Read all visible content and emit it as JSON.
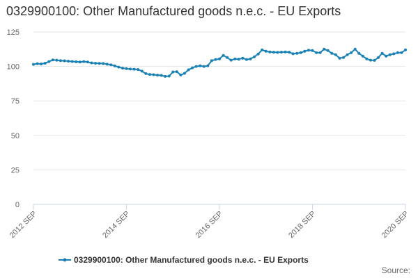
{
  "page": {
    "title": "0329900100: Other Manufactured goods n.e.c. - EU Exports",
    "source_label": "Source:"
  },
  "chart_data": {
    "type": "line",
    "title": "0329900100: Other Manufactured goods n.e.c. - EU Exports",
    "xlabel": "",
    "ylabel": "",
    "ylim": [
      0,
      125
    ],
    "yticks": [
      0,
      25,
      50,
      75,
      100,
      125
    ],
    "xticks": [
      {
        "label": "2012 SEP",
        "index": 0
      },
      {
        "label": "2014 SEP",
        "index": 24
      },
      {
        "label": "2016 SEP",
        "index": 48
      },
      {
        "label": "2018 SEP",
        "index": 72
      },
      {
        "label": "2020 SEP",
        "index": 96
      }
    ],
    "x_start": "2012-09",
    "x_frequency": "monthly",
    "grid": true,
    "legend_position": "bottom",
    "colors": {
      "series": "#1a81b5",
      "grid": "#e6e6e6",
      "axis": "#ccd6eb"
    },
    "series": [
      {
        "name": "0329900100: Other Manufactured goods n.e.c. - EU Exports",
        "values": [
          101.5,
          102,
          101.8,
          102.3,
          103.5,
          104.7,
          104.5,
          104.2,
          104.1,
          103.8,
          103.6,
          103.4,
          103.2,
          103.5,
          103.2,
          102.6,
          102.3,
          102.2,
          102.1,
          101.6,
          101.2,
          100.4,
          99.5,
          98.8,
          98.4,
          98.1,
          98.0,
          97.8,
          96.6,
          94.8,
          94.2,
          94.0,
          93.7,
          93.5,
          92.8,
          93.0,
          96.0,
          96.2,
          93.8,
          95.0,
          97.5,
          99.0,
          100.0,
          100.5,
          100.0,
          100.5,
          104.2,
          105.0,
          105.5,
          108.0,
          106.5,
          104.5,
          105.5,
          105.2,
          106.0,
          105.0,
          105.5,
          107.0,
          109.0,
          112.0,
          111.0,
          110.5,
          110.3,
          110.2,
          110.4,
          110.5,
          110.3,
          109.2,
          109.5,
          110.0,
          111.0,
          111.8,
          111.5,
          110.0,
          110.0,
          112.5,
          111.5,
          109.5,
          108.5,
          106.0,
          106.5,
          108.5,
          110.0,
          112.5,
          109.5,
          107.5,
          105.5,
          104.5,
          104.4,
          106.5,
          109.5,
          107.5,
          108.5,
          109.2,
          110.0,
          110.0,
          112.0
        ]
      }
    ]
  }
}
